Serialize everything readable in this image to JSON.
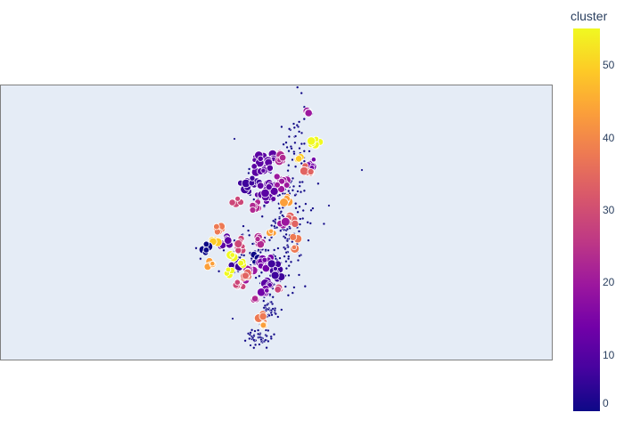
{
  "map": {
    "background_color": "#e5ecf6",
    "border_color": "#7f7f7f",
    "marker_outline_color": "#ffffff"
  },
  "colorbar": {
    "title": "cluster",
    "ticks": [
      "0",
      "10",
      "20",
      "30",
      "40",
      "50"
    ],
    "tick_values": [
      0,
      10,
      20,
      30,
      40,
      50
    ],
    "range": [
      0,
      55
    ],
    "colorscale": [
      "#0d0887",
      "#46039f",
      "#7201a8",
      "#9c179e",
      "#bd3786",
      "#d8576b",
      "#ed7953",
      "#fb9f3a",
      "#fdca26",
      "#f0f921"
    ]
  },
  "chart_data": {
    "type": "scatter",
    "title": "",
    "color_variable": "cluster",
    "color_range": [
      0,
      55
    ],
    "marker_style": "circles with white outline; size varies",
    "noise_cluster_value": 0,
    "cluster_groups": [
      {
        "cluster": 0,
        "approx_color": "#0d0887",
        "description": "small scattered dark points across region"
      },
      {
        "cluster": 5,
        "approx_color": "#3f049c"
      },
      {
        "cluster": 8,
        "approx_color": "#5b02a3"
      },
      {
        "cluster": 12,
        "approx_color": "#7201a8"
      },
      {
        "cluster": 18,
        "approx_color": "#9c179e"
      },
      {
        "cluster": 22,
        "approx_color": "#b02991"
      },
      {
        "cluster": 28,
        "approx_color": "#cc4778"
      },
      {
        "cluster": 33,
        "approx_color": "#e16462"
      },
      {
        "cluster": 37,
        "approx_color": "#ed7953"
      },
      {
        "cluster": 42,
        "approx_color": "#fb9f3a"
      },
      {
        "cluster": 47,
        "approx_color": "#fdca26"
      },
      {
        "cluster": 53,
        "approx_color": "#f0f921"
      }
    ]
  }
}
